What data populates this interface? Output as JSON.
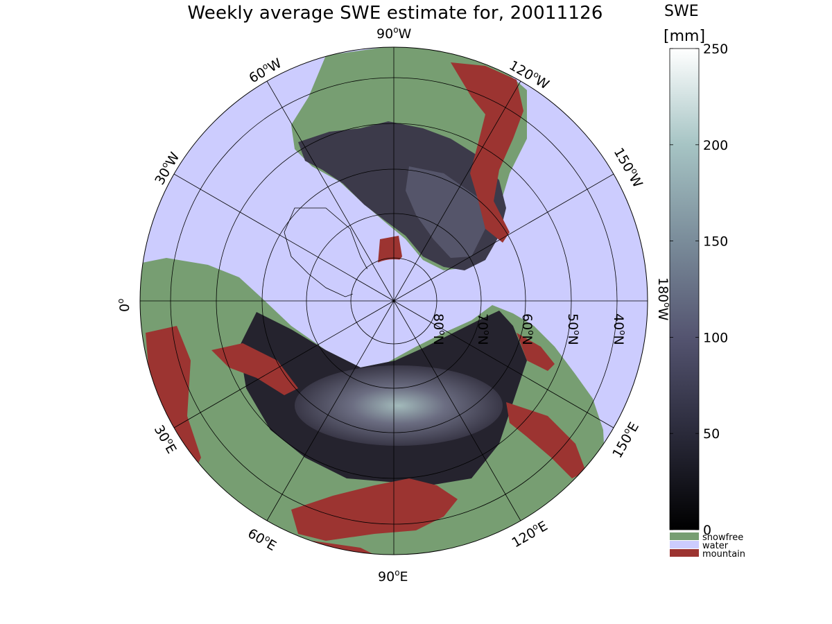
{
  "title": "Weekly average SWE estimate for, 20011126",
  "colorbar": {
    "title": "SWE",
    "unit": "[mm]",
    "ticks": [
      "0",
      "50",
      "100",
      "150",
      "200",
      "250"
    ],
    "tick_values": [
      0,
      50,
      100,
      150,
      200,
      250
    ],
    "range": [
      0,
      250
    ],
    "colormap": "bone",
    "categories": [
      {
        "label": "snowfree",
        "color": "#779e72"
      },
      {
        "label": "water",
        "color": "#ccccfe"
      },
      {
        "label": "mountain",
        "color": "#9c3431"
      }
    ]
  },
  "map": {
    "projection": "north polar stereographic",
    "colors": {
      "ocean": "#ccccfe",
      "snowfree": "#779e72",
      "mountain": "#9c3431",
      "snow_low": "#1e1c26",
      "snow_high": "#a9c2c2"
    },
    "meridian_labels": [
      {
        "base": "90",
        "sup": "o",
        "suffix": "W",
        "deg": 90
      },
      {
        "base": "120",
        "sup": "o",
        "suffix": "W",
        "deg": 120
      },
      {
        "base": "150",
        "sup": "o",
        "suffix": "W",
        "deg": 150
      },
      {
        "base": "180",
        "sup": "o",
        "suffix": "W",
        "deg": 180
      },
      {
        "base": "150",
        "sup": "o",
        "suffix": "E",
        "deg": 210
      },
      {
        "base": "120",
        "sup": "o",
        "suffix": "E",
        "deg": 240
      },
      {
        "base": "90",
        "sup": "o",
        "suffix": "E",
        "deg": 270
      },
      {
        "base": "60",
        "sup": "o",
        "suffix": "E",
        "deg": 300
      },
      {
        "base": "30",
        "sup": "o",
        "suffix": "E",
        "deg": 330
      },
      {
        "base": "0",
        "sup": "o",
        "suffix": "",
        "deg": 0
      },
      {
        "base": "30",
        "sup": "o",
        "suffix": "W",
        "deg": 30
      },
      {
        "base": "60",
        "sup": "o",
        "suffix": "W",
        "deg": 60
      }
    ],
    "parallel_labels": [
      {
        "base": "80",
        "sup": "o",
        "suffix": "N",
        "lat": 80
      },
      {
        "base": "70",
        "sup": "o",
        "suffix": "N",
        "lat": 70
      },
      {
        "base": "60",
        "sup": "o",
        "suffix": "N",
        "lat": 60
      },
      {
        "base": "50",
        "sup": "o",
        "suffix": "N",
        "lat": 50
      },
      {
        "base": "40",
        "sup": "o",
        "suffix": "N",
        "lat": 40
      }
    ]
  }
}
